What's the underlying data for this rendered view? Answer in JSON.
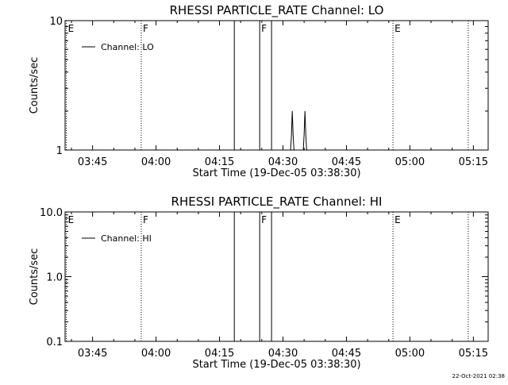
{
  "footer": {
    "timestamp": "22-Oct-2021 02:38"
  },
  "chart_data": [
    {
      "type": "line",
      "title": "RHESSI PARTICLE_RATE Channel: LO",
      "xlabel": "Start Time (19-Dec-05 03:38:30)",
      "ylabel": "Counts/sec",
      "x_units": "minutes after 03:38:30",
      "xlim": [
        0,
        100
      ],
      "ylim": [
        1,
        10
      ],
      "yscale": "log",
      "x_ticks": [
        {
          "t": 6.5,
          "label": "03:45"
        },
        {
          "t": 21.5,
          "label": "04:00"
        },
        {
          "t": 36.5,
          "label": "04:15"
        },
        {
          "t": 51.5,
          "label": "04:30"
        },
        {
          "t": 66.5,
          "label": "04:45"
        },
        {
          "t": 81.5,
          "label": "05:00"
        },
        {
          "t": 96.5,
          "label": "05:15"
        }
      ],
      "y_ticks": [
        {
          "v": 1,
          "label": "1"
        },
        {
          "v": 10,
          "label": "10"
        }
      ],
      "grid": false,
      "legend": {
        "position": "top-left",
        "entries": [
          "Channel: LO"
        ]
      },
      "markers": [
        {
          "t": 0.3,
          "label": "E",
          "style": "dotted"
        },
        {
          "t": 18.0,
          "label": "F",
          "style": "dotted"
        },
        {
          "t": 40.0,
          "label": "",
          "style": "solid"
        },
        {
          "t": 46.0,
          "label": "F",
          "style": "solid"
        },
        {
          "t": 48.8,
          "label": "",
          "style": "solid"
        },
        {
          "t": 77.5,
          "label": "E",
          "style": "dotted"
        },
        {
          "t": 95.3,
          "label": "",
          "style": "dotted"
        }
      ],
      "series": [
        {
          "x": [
            53.3,
            53.5,
            53.7,
            53.9,
            54.1,
            56.3,
            56.5,
            56.7,
            56.9,
            57.1
          ],
          "y": [
            1,
            1.3,
            2,
            1.3,
            1,
            1,
            1.3,
            2,
            1.3,
            1
          ]
        }
      ]
    },
    {
      "type": "line",
      "title": "RHESSI PARTICLE_RATE Channel: HI",
      "xlabel": "Start Time (19-Dec-05 03:38:30)",
      "ylabel": "Counts/sec",
      "x_units": "minutes after 03:38:30",
      "xlim": [
        0,
        100
      ],
      "ylim": [
        0.1,
        10
      ],
      "yscale": "log",
      "x_ticks": [
        {
          "t": 6.5,
          "label": "03:45"
        },
        {
          "t": 21.5,
          "label": "04:00"
        },
        {
          "t": 36.5,
          "label": "04:15"
        },
        {
          "t": 51.5,
          "label": "04:30"
        },
        {
          "t": 66.5,
          "label": "04:45"
        },
        {
          "t": 81.5,
          "label": "05:00"
        },
        {
          "t": 96.5,
          "label": "05:15"
        }
      ],
      "y_ticks": [
        {
          "v": 0.1,
          "label": "0.1"
        },
        {
          "v": 1,
          "label": "1.0"
        },
        {
          "v": 10,
          "label": "10.0"
        }
      ],
      "grid": false,
      "legend": {
        "position": "top-left",
        "entries": [
          "Channel: HI"
        ]
      },
      "markers": [
        {
          "t": 0.3,
          "label": "E",
          "style": "dotted"
        },
        {
          "t": 18.0,
          "label": "F",
          "style": "dotted"
        },
        {
          "t": 40.0,
          "label": "",
          "style": "solid"
        },
        {
          "t": 46.0,
          "label": "F",
          "style": "solid"
        },
        {
          "t": 48.8,
          "label": "",
          "style": "solid"
        },
        {
          "t": 77.5,
          "label": "E",
          "style": "dotted"
        },
        {
          "t": 95.3,
          "label": "",
          "style": "dotted"
        }
      ],
      "series": []
    }
  ]
}
